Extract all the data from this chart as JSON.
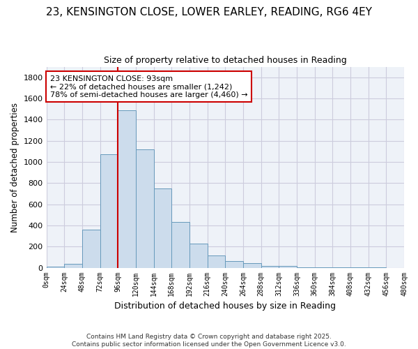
{
  "title_line1": "23, KENSINGTON CLOSE, LOWER EARLEY, READING, RG6 4EY",
  "title_line2": "Size of property relative to detached houses in Reading",
  "xlabel": "Distribution of detached houses by size in Reading",
  "ylabel": "Number of detached properties",
  "bar_bins": [
    0,
    24,
    48,
    72,
    96,
    120,
    144,
    168,
    192,
    216,
    240,
    264,
    288,
    312,
    336,
    360,
    384,
    408,
    432,
    456,
    480
  ],
  "bar_values": [
    10,
    35,
    360,
    1070,
    1490,
    1120,
    750,
    435,
    230,
    115,
    60,
    45,
    20,
    15,
    5,
    3,
    2,
    1,
    1,
    0
  ],
  "bar_color": "#ccdcec",
  "bar_edge_color": "#6699bb",
  "grid_color": "#ccccdd",
  "bg_color": "#eef2f8",
  "vline_x": 96,
  "vline_color": "#cc0000",
  "annotation_text": "23 KENSINGTON CLOSE: 93sqm\n← 22% of detached houses are smaller (1,242)\n78% of semi-detached houses are larger (4,460) →",
  "annotation_box_color": "#ffffff",
  "annotation_box_edge": "#cc0000",
  "ylim": [
    0,
    1900
  ],
  "yticks": [
    0,
    200,
    400,
    600,
    800,
    1000,
    1200,
    1400,
    1600,
    1800
  ],
  "footer_text": "Contains HM Land Registry data © Crown copyright and database right 2025.\nContains public sector information licensed under the Open Government Licence v3.0.",
  "tick_labels": [
    "0sqm",
    "24sqm",
    "48sqm",
    "72sqm",
    "96sqm",
    "120sqm",
    "144sqm",
    "168sqm",
    "192sqm",
    "216sqm",
    "240sqm",
    "264sqm",
    "288sqm",
    "312sqm",
    "336sqm",
    "360sqm",
    "384sqm",
    "408sqm",
    "432sqm",
    "456sqm",
    "480sqm"
  ],
  "title_fontsize": 11,
  "subtitle_fontsize": 9
}
